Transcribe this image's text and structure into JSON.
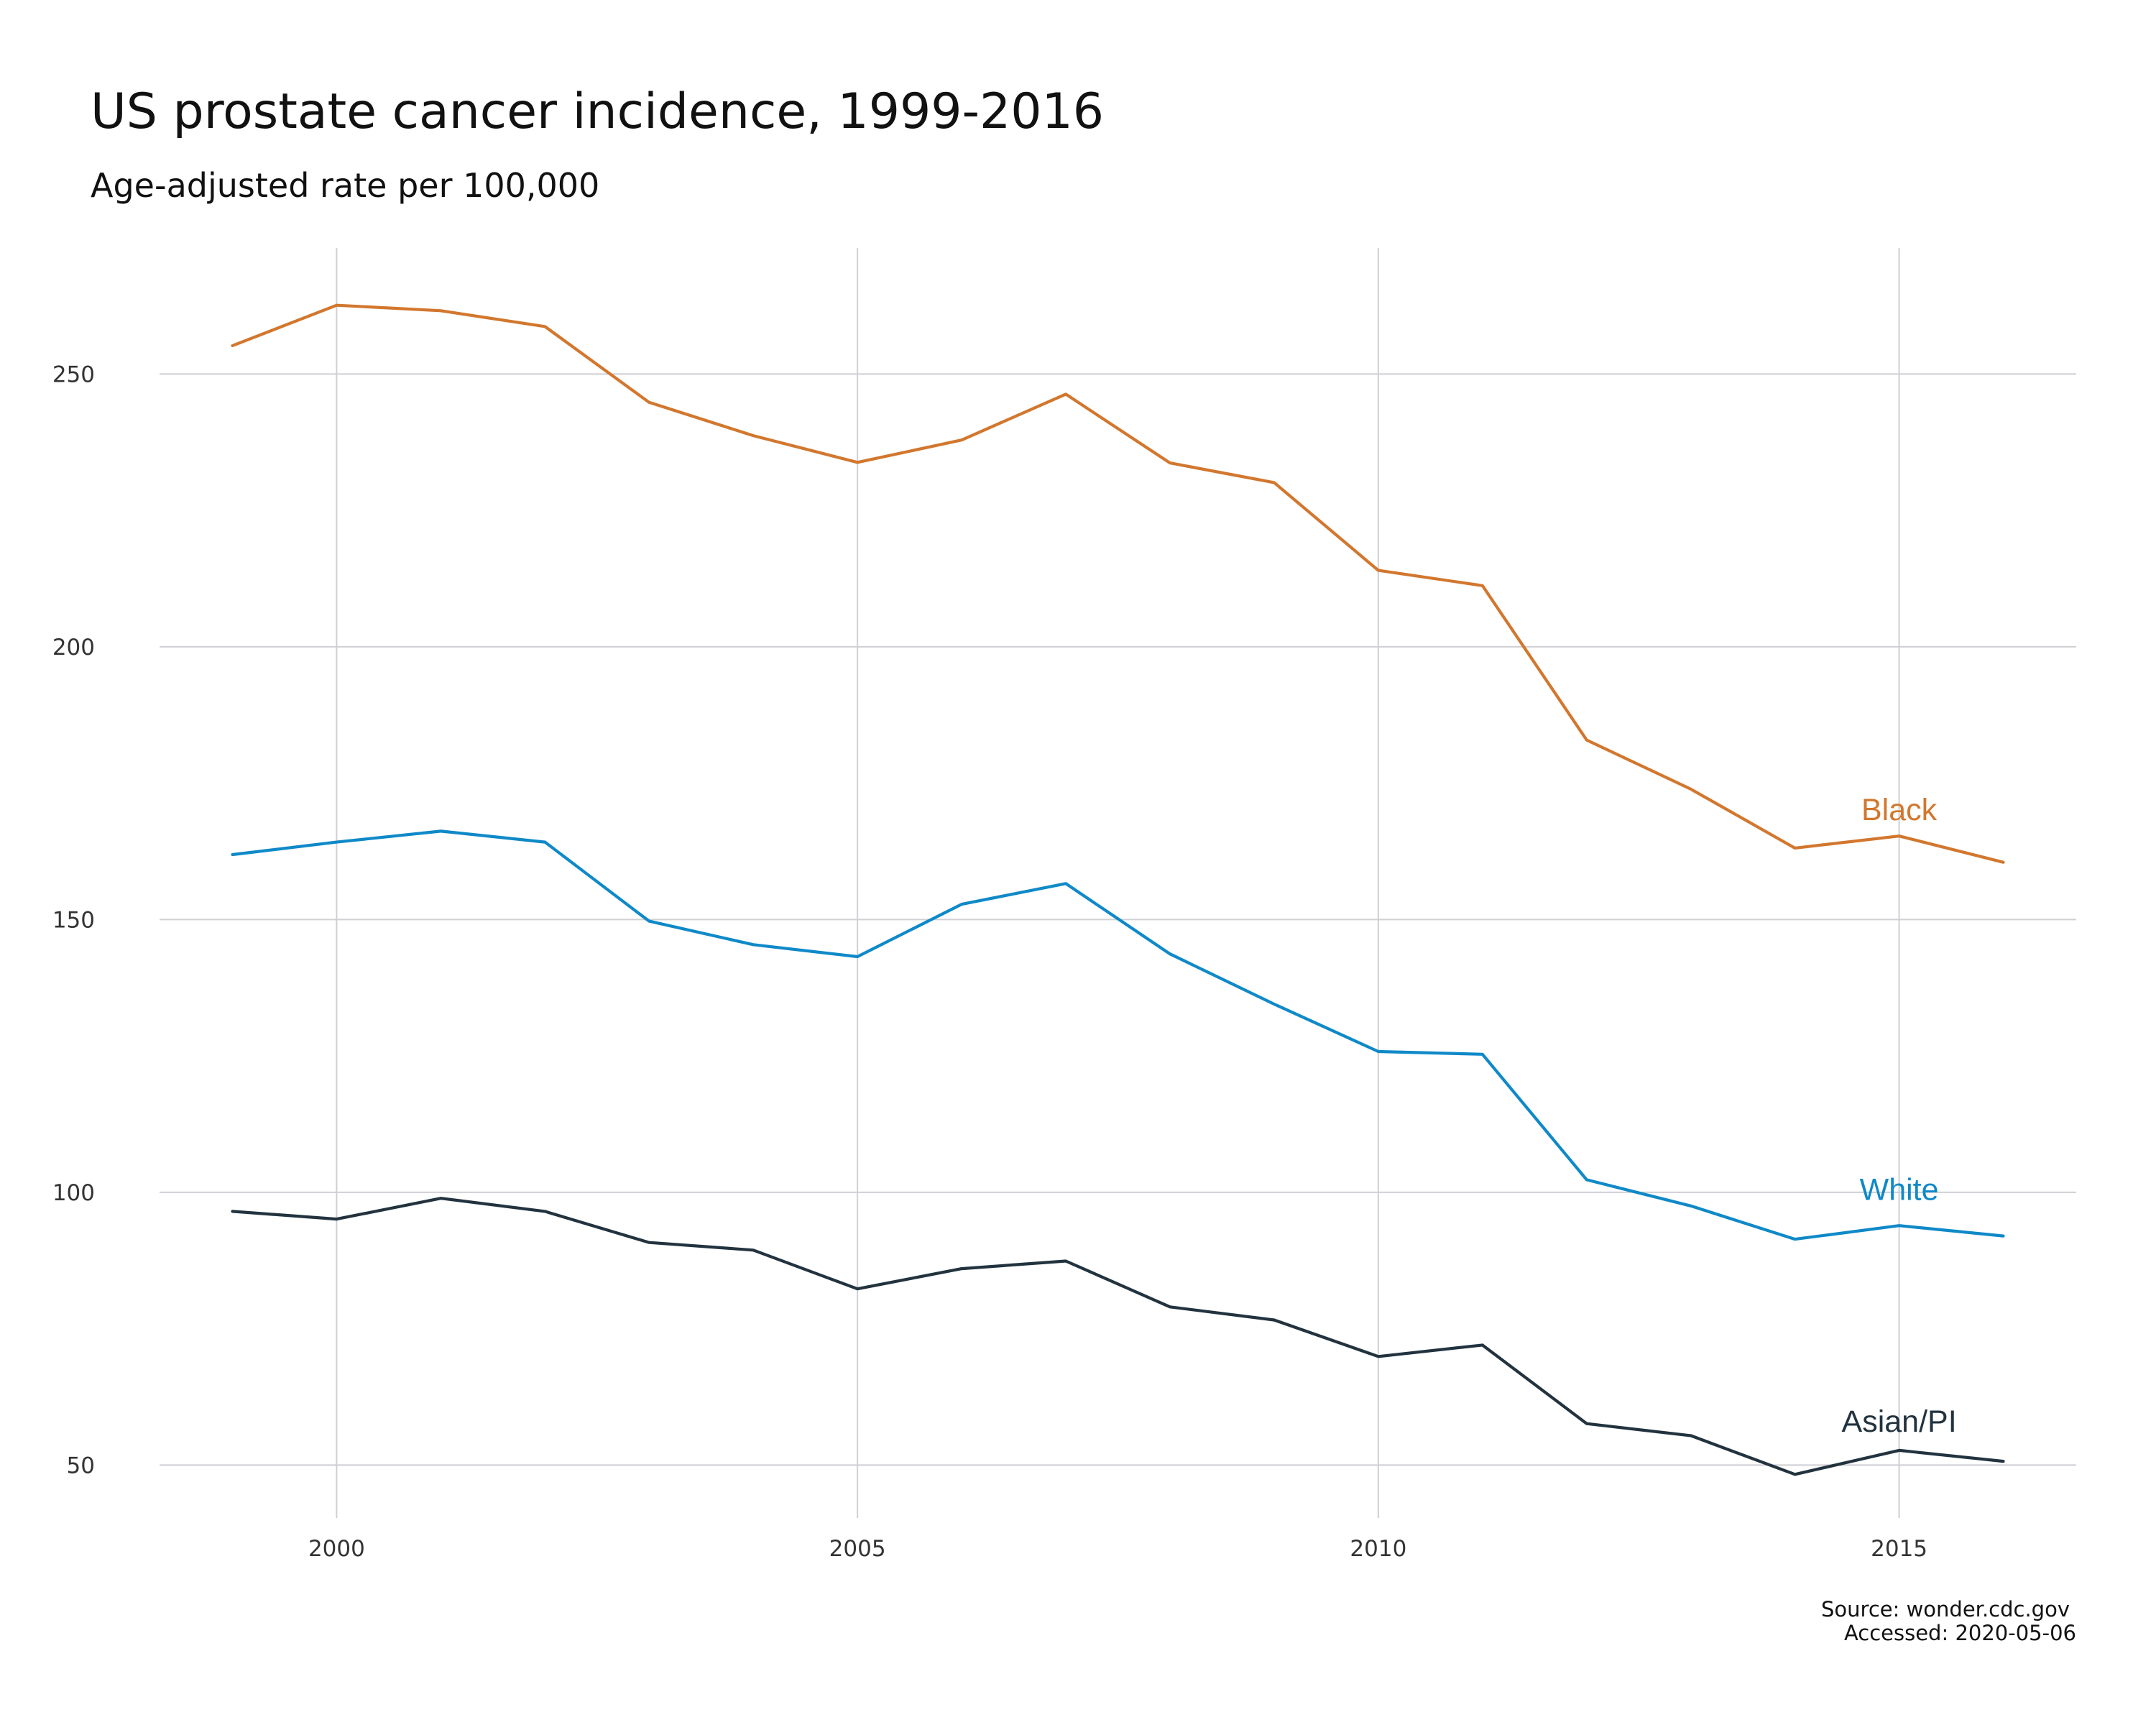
{
  "chart_data": {
    "type": "line",
    "title": "US prostate cancer incidence, 1999-2016",
    "subtitle": "Age-adjusted rate per 100,000",
    "caption": [
      "Source: wonder.cdc.gov",
      "Accessed: 2020-05-06"
    ],
    "xlabel": "",
    "ylabel": "",
    "x": [
      1999,
      2000,
      2001,
      2002,
      2003,
      2004,
      2005,
      2006,
      2007,
      2008,
      2009,
      2010,
      2011,
      2012,
      2013,
      2014,
      2015,
      2016
    ],
    "xlim": [
      1998.3,
      2016.7
    ],
    "ylim": [
      40.3,
      273.1
    ],
    "x_ticks": [
      2000,
      2005,
      2010,
      2015
    ],
    "y_ticks": [
      50,
      100,
      150,
      200,
      250
    ],
    "grid": true,
    "legend": "none",
    "series": [
      {
        "name": "Black",
        "color": "#d2772e",
        "values": [
          255.2,
          262.6,
          261.6,
          258.7,
          244.8,
          238.7,
          233.8,
          237.9,
          246.3,
          233.7,
          230.1,
          214.0,
          211.2,
          182.9,
          173.9,
          163.1,
          165.3,
          160.5
        ],
        "label_x": 2015,
        "label_y": 170.2
      },
      {
        "name": "White",
        "color": "#0f89c8",
        "values": [
          161.9,
          164.2,
          166.2,
          164.2,
          149.7,
          145.4,
          143.2,
          152.8,
          156.6,
          143.7,
          134.5,
          125.8,
          125.3,
          102.3,
          97.5,
          91.4,
          93.9,
          92.0
        ],
        "label_x": 2015,
        "label_y": 100.6
      },
      {
        "name": "Asian/PI",
        "color": "#22333f",
        "values": [
          96.5,
          95.1,
          98.9,
          96.5,
          90.8,
          89.4,
          82.3,
          86.0,
          87.4,
          79.0,
          76.6,
          69.9,
          72.0,
          57.6,
          55.4,
          48.3,
          52.7,
          50.7
        ],
        "label_x": 2015,
        "label_y": 58.1
      }
    ]
  }
}
